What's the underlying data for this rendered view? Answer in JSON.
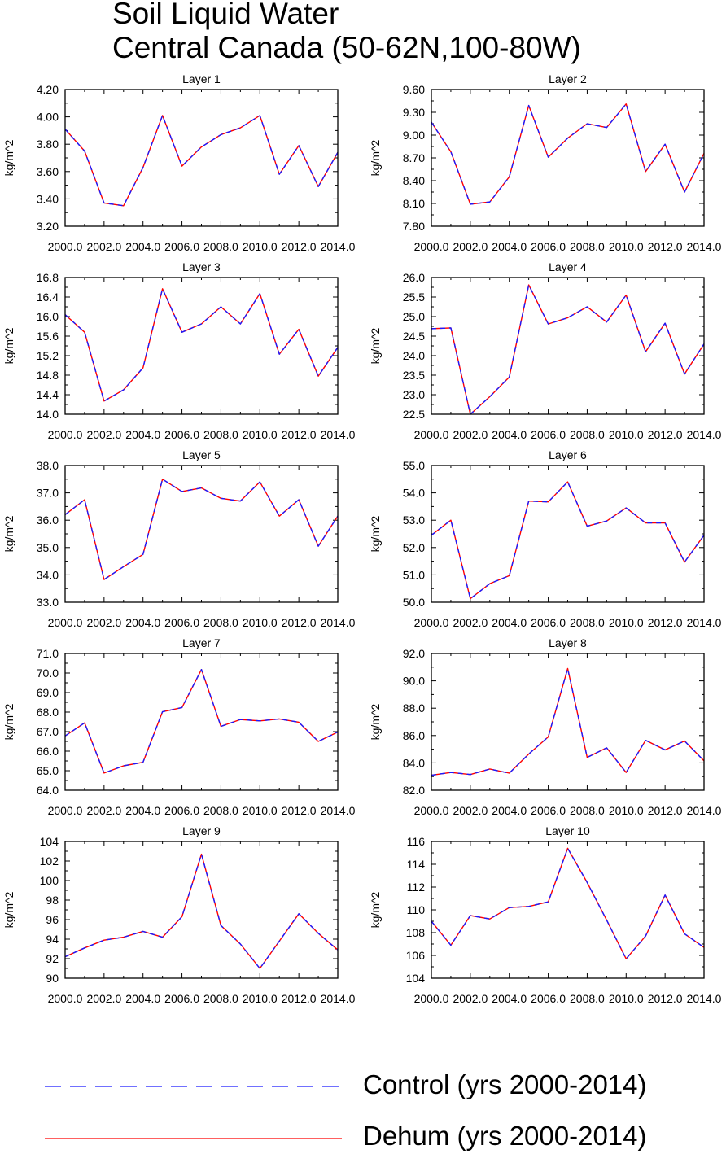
{
  "title": {
    "line1": "Soil Liquid Water",
    "line2": "Central Canada (50-62N,100-80W)"
  },
  "chart_data": [
    {
      "type": "line",
      "title": "Layer 1",
      "xlabel": "",
      "ylabel": "kg/m^2",
      "x": [
        2000,
        2001,
        2002,
        2003,
        2004,
        2005,
        2006,
        2007,
        2008,
        2009,
        2010,
        2011,
        2012,
        2013,
        2014
      ],
      "xlim": [
        2000,
        2014
      ],
      "xticks": [
        2000,
        2002,
        2004,
        2006,
        2008,
        2010,
        2012,
        2014
      ],
      "xtick_labels": [
        "2000.0",
        "2002.0",
        "2004.0",
        "2006.0",
        "2008.0",
        "2010.0",
        "2012.0",
        "2014.0"
      ],
      "ylim": [
        3.2,
        4.2
      ],
      "yticks": [
        3.2,
        3.4,
        3.6,
        3.8,
        4.0,
        4.2
      ],
      "ytick_labels": [
        "3.20",
        "3.40",
        "3.60",
        "3.80",
        "4.00",
        "4.20"
      ],
      "series": [
        {
          "name": "Control (yrs 2000-2014)",
          "values": [
            3.91,
            3.75,
            3.37,
            3.35,
            3.63,
            4.01,
            3.64,
            3.78,
            3.87,
            3.92,
            4.01,
            3.58,
            3.79,
            3.49,
            3.74
          ]
        },
        {
          "name": "Dehum (yrs 2000-2014)",
          "values": [
            3.91,
            3.75,
            3.37,
            3.35,
            3.63,
            4.01,
            3.64,
            3.78,
            3.87,
            3.92,
            4.01,
            3.58,
            3.79,
            3.49,
            3.74
          ]
        }
      ]
    },
    {
      "type": "line",
      "title": "Layer 2",
      "xlabel": "",
      "ylabel": "kg/m^2",
      "x": [
        2000,
        2001,
        2002,
        2003,
        2004,
        2005,
        2006,
        2007,
        2008,
        2009,
        2010,
        2011,
        2012,
        2013,
        2014
      ],
      "xlim": [
        2000,
        2014
      ],
      "xticks": [
        2000,
        2002,
        2004,
        2006,
        2008,
        2010,
        2012,
        2014
      ],
      "xtick_labels": [
        "2000.0",
        "2002.0",
        "2004.0",
        "2006.0",
        "2008.0",
        "2010.0",
        "2012.0",
        "2014.0"
      ],
      "ylim": [
        7.8,
        9.6
      ],
      "yticks": [
        7.8,
        8.1,
        8.4,
        8.7,
        9.0,
        9.3,
        9.6
      ],
      "ytick_labels": [
        "7.80",
        "8.10",
        "8.40",
        "8.70",
        "9.00",
        "9.30",
        "9.60"
      ],
      "series": [
        {
          "name": "Control (yrs 2000-2014)",
          "values": [
            9.17,
            8.78,
            8.09,
            8.12,
            8.45,
            9.39,
            8.71,
            8.96,
            9.15,
            9.1,
            9.41,
            8.52,
            8.88,
            8.25,
            8.76
          ]
        },
        {
          "name": "Dehum (yrs 2000-2014)",
          "values": [
            9.17,
            8.78,
            8.09,
            8.12,
            8.45,
            9.39,
            8.71,
            8.96,
            9.15,
            9.1,
            9.41,
            8.52,
            8.88,
            8.25,
            8.76
          ]
        }
      ]
    },
    {
      "type": "line",
      "title": "Layer 3",
      "xlabel": "",
      "ylabel": "kg/m^2",
      "x": [
        2000,
        2001,
        2002,
        2003,
        2004,
        2005,
        2006,
        2007,
        2008,
        2009,
        2010,
        2011,
        2012,
        2013,
        2014
      ],
      "xlim": [
        2000,
        2014
      ],
      "xticks": [
        2000,
        2002,
        2004,
        2006,
        2008,
        2010,
        2012,
        2014
      ],
      "xtick_labels": [
        "2000.0",
        "2002.0",
        "2004.0",
        "2006.0",
        "2008.0",
        "2010.0",
        "2012.0",
        "2014.0"
      ],
      "ylim": [
        14.0,
        16.8
      ],
      "yticks": [
        14.0,
        14.4,
        14.8,
        15.2,
        15.6,
        16.0,
        16.4,
        16.8
      ],
      "ytick_labels": [
        "14.0",
        "14.4",
        "14.8",
        "15.2",
        "15.6",
        "16.0",
        "16.4",
        "16.8"
      ],
      "series": [
        {
          "name": "Control (yrs 2000-2014)",
          "values": [
            16.04,
            15.68,
            14.27,
            14.5,
            14.95,
            16.57,
            15.68,
            15.85,
            16.2,
            15.85,
            16.47,
            15.23,
            15.74,
            14.78,
            15.37
          ]
        },
        {
          "name": "Dehum (yrs 2000-2014)",
          "values": [
            16.04,
            15.68,
            14.27,
            14.5,
            14.95,
            16.57,
            15.68,
            15.85,
            16.2,
            15.85,
            16.47,
            15.23,
            15.74,
            14.78,
            15.37
          ]
        }
      ]
    },
    {
      "type": "line",
      "title": "Layer 4",
      "xlabel": "",
      "ylabel": "kg/m^2",
      "x": [
        2000,
        2001,
        2002,
        2003,
        2004,
        2005,
        2006,
        2007,
        2008,
        2009,
        2010,
        2011,
        2012,
        2013,
        2014
      ],
      "xlim": [
        2000,
        2014
      ],
      "xticks": [
        2000,
        2002,
        2004,
        2006,
        2008,
        2010,
        2012,
        2014
      ],
      "xtick_labels": [
        "2000.0",
        "2002.0",
        "2004.0",
        "2006.0",
        "2008.0",
        "2010.0",
        "2012.0",
        "2014.0"
      ],
      "ylim": [
        22.5,
        26.0
      ],
      "yticks": [
        22.5,
        23.0,
        23.5,
        24.0,
        24.5,
        25.0,
        25.5,
        26.0
      ],
      "ytick_labels": [
        "22.5",
        "23.0",
        "23.5",
        "24.0",
        "24.5",
        "25.0",
        "25.5",
        "26.0"
      ],
      "series": [
        {
          "name": "Control (yrs 2000-2014)",
          "values": [
            24.69,
            24.71,
            22.5,
            22.95,
            23.45,
            25.81,
            24.81,
            24.97,
            25.25,
            24.86,
            25.55,
            24.1,
            24.83,
            23.53,
            24.3
          ]
        },
        {
          "name": "Dehum (yrs 2000-2014)",
          "values": [
            24.69,
            24.71,
            22.5,
            22.95,
            23.45,
            25.81,
            24.81,
            24.97,
            25.25,
            24.86,
            25.55,
            24.1,
            24.83,
            23.53,
            24.3
          ]
        }
      ]
    },
    {
      "type": "line",
      "title": "Layer 5",
      "xlabel": "",
      "ylabel": "kg/m^2",
      "x": [
        2000,
        2001,
        2002,
        2003,
        2004,
        2005,
        2006,
        2007,
        2008,
        2009,
        2010,
        2011,
        2012,
        2013,
        2014
      ],
      "xlim": [
        2000,
        2014
      ],
      "xticks": [
        2000,
        2002,
        2004,
        2006,
        2008,
        2010,
        2012,
        2014
      ],
      "xtick_labels": [
        "2000.0",
        "2002.0",
        "2004.0",
        "2006.0",
        "2008.0",
        "2010.0",
        "2012.0",
        "2014.0"
      ],
      "ylim": [
        33.0,
        38.0
      ],
      "yticks": [
        33.0,
        34.0,
        35.0,
        36.0,
        37.0,
        38.0
      ],
      "ytick_labels": [
        "33.0",
        "34.0",
        "35.0",
        "36.0",
        "37.0",
        "38.0"
      ],
      "series": [
        {
          "name": "Control (yrs 2000-2014)",
          "values": [
            36.2,
            36.75,
            33.83,
            34.3,
            34.75,
            37.5,
            37.05,
            37.18,
            36.8,
            36.7,
            37.4,
            36.15,
            36.75,
            35.05,
            36.15
          ]
        },
        {
          "name": "Dehum (yrs 2000-2014)",
          "values": [
            36.2,
            36.75,
            33.83,
            34.3,
            34.75,
            37.5,
            37.05,
            37.18,
            36.8,
            36.7,
            37.4,
            36.15,
            36.75,
            35.05,
            36.15
          ]
        }
      ]
    },
    {
      "type": "line",
      "title": "Layer 6",
      "xlabel": "",
      "ylabel": "kg/m^2",
      "x": [
        2000,
        2001,
        2002,
        2003,
        2004,
        2005,
        2006,
        2007,
        2008,
        2009,
        2010,
        2011,
        2012,
        2013,
        2014
      ],
      "xlim": [
        2000,
        2014
      ],
      "xticks": [
        2000,
        2002,
        2004,
        2006,
        2008,
        2010,
        2012,
        2014
      ],
      "xtick_labels": [
        "2000.0",
        "2002.0",
        "2004.0",
        "2006.0",
        "2008.0",
        "2010.0",
        "2012.0",
        "2014.0"
      ],
      "ylim": [
        50.0,
        55.0
      ],
      "yticks": [
        50.0,
        51.0,
        52.0,
        53.0,
        54.0,
        55.0
      ],
      "ytick_labels": [
        "50.0",
        "51.0",
        "52.0",
        "53.0",
        "54.0",
        "55.0"
      ],
      "series": [
        {
          "name": "Control (yrs 2000-2014)",
          "values": [
            52.45,
            53.0,
            50.13,
            50.68,
            50.97,
            53.7,
            53.67,
            54.4,
            52.78,
            52.97,
            53.45,
            52.9,
            52.9,
            51.47,
            52.45
          ]
        },
        {
          "name": "Dehum (yrs 2000-2014)",
          "values": [
            52.45,
            53.0,
            50.13,
            50.68,
            50.97,
            53.7,
            53.67,
            54.4,
            52.78,
            52.97,
            53.45,
            52.9,
            52.9,
            51.47,
            52.45
          ]
        }
      ]
    },
    {
      "type": "line",
      "title": "Layer 7",
      "xlabel": "",
      "ylabel": "kg/m^2",
      "x": [
        2000,
        2001,
        2002,
        2003,
        2004,
        2005,
        2006,
        2007,
        2008,
        2009,
        2010,
        2011,
        2012,
        2013,
        2014
      ],
      "xlim": [
        2000,
        2014
      ],
      "xticks": [
        2000,
        2002,
        2004,
        2006,
        2008,
        2010,
        2012,
        2014
      ],
      "xtick_labels": [
        "2000.0",
        "2002.0",
        "2004.0",
        "2006.0",
        "2008.0",
        "2010.0",
        "2012.0",
        "2014.0"
      ],
      "ylim": [
        64.0,
        71.0
      ],
      "yticks": [
        64.0,
        65.0,
        66.0,
        67.0,
        68.0,
        69.0,
        70.0,
        71.0
      ],
      "ytick_labels": [
        "64.0",
        "65.0",
        "66.0",
        "67.0",
        "68.0",
        "69.0",
        "70.0",
        "71.0"
      ],
      "series": [
        {
          "name": "Control (yrs 2000-2014)",
          "values": [
            66.78,
            67.45,
            64.88,
            65.25,
            65.43,
            68.02,
            68.23,
            70.18,
            67.27,
            67.62,
            67.55,
            67.65,
            67.48,
            66.5,
            66.98
          ]
        },
        {
          "name": "Dehum (yrs 2000-2014)",
          "values": [
            66.78,
            67.45,
            64.88,
            65.25,
            65.43,
            68.02,
            68.23,
            70.18,
            67.27,
            67.62,
            67.55,
            67.65,
            67.48,
            66.5,
            66.98
          ]
        }
      ]
    },
    {
      "type": "line",
      "title": "Layer 8",
      "xlabel": "",
      "ylabel": "kg/m^2",
      "x": [
        2000,
        2001,
        2002,
        2003,
        2004,
        2005,
        2006,
        2007,
        2008,
        2009,
        2010,
        2011,
        2012,
        2013,
        2014
      ],
      "xlim": [
        2000,
        2014
      ],
      "xticks": [
        2000,
        2002,
        2004,
        2006,
        2008,
        2010,
        2012,
        2014
      ],
      "xtick_labels": [
        "2000.0",
        "2002.0",
        "2004.0",
        "2006.0",
        "2008.0",
        "2010.0",
        "2012.0",
        "2014.0"
      ],
      "ylim": [
        82.0,
        92.0
      ],
      "yticks": [
        82.0,
        84.0,
        86.0,
        88.0,
        90.0,
        92.0
      ],
      "ytick_labels": [
        "82.0",
        "84.0",
        "86.0",
        "88.0",
        "90.0",
        "92.0"
      ],
      "series": [
        {
          "name": "Control (yrs 2000-2014)",
          "values": [
            83.1,
            83.3,
            83.15,
            83.55,
            83.25,
            84.65,
            85.9,
            90.9,
            84.4,
            85.1,
            83.3,
            85.65,
            84.95,
            85.6,
            84.15
          ]
        },
        {
          "name": "Dehum (yrs 2000-2014)",
          "values": [
            83.1,
            83.3,
            83.15,
            83.55,
            83.25,
            84.65,
            85.9,
            90.9,
            84.4,
            85.1,
            83.3,
            85.65,
            84.95,
            85.6,
            84.15
          ]
        }
      ]
    },
    {
      "type": "line",
      "title": "Layer 9",
      "xlabel": "",
      "ylabel": "kg/m^2",
      "x": [
        2000,
        2001,
        2002,
        2003,
        2004,
        2005,
        2006,
        2007,
        2008,
        2009,
        2010,
        2011,
        2012,
        2013,
        2014
      ],
      "xlim": [
        2000,
        2014
      ],
      "xticks": [
        2000,
        2002,
        2004,
        2006,
        2008,
        2010,
        2012,
        2014
      ],
      "xtick_labels": [
        "2000.0",
        "2002.0",
        "2004.0",
        "2006.0",
        "2008.0",
        "2010.0",
        "2012.0",
        "2014.0"
      ],
      "ylim": [
        90,
        104
      ],
      "yticks": [
        90,
        92,
        94,
        96,
        98,
        100,
        102,
        104
      ],
      "ytick_labels": [
        "90",
        "92",
        "94",
        "96",
        "98",
        "100",
        "102",
        "104"
      ],
      "series": [
        {
          "name": "Control (yrs 2000-2014)",
          "values": [
            92.2,
            93.1,
            93.9,
            94.2,
            94.8,
            94.2,
            96.3,
            102.7,
            95.4,
            93.5,
            91.0,
            93.8,
            96.6,
            94.6,
            92.9
          ]
        },
        {
          "name": "Dehum (yrs 2000-2014)",
          "values": [
            92.2,
            93.1,
            93.9,
            94.2,
            94.8,
            94.2,
            96.3,
            102.7,
            95.4,
            93.5,
            91.0,
            93.8,
            96.6,
            94.6,
            92.9
          ]
        }
      ]
    },
    {
      "type": "line",
      "title": "Layer 10",
      "xlabel": "",
      "ylabel": "kg/m^2",
      "x": [
        2000,
        2001,
        2002,
        2003,
        2004,
        2005,
        2006,
        2007,
        2008,
        2009,
        2010,
        2011,
        2012,
        2013,
        2014
      ],
      "xlim": [
        2000,
        2014
      ],
      "xticks": [
        2000,
        2002,
        2004,
        2006,
        2008,
        2010,
        2012,
        2014
      ],
      "xtick_labels": [
        "2000.0",
        "2002.0",
        "2004.0",
        "2006.0",
        "2008.0",
        "2010.0",
        "2012.0",
        "2014.0"
      ],
      "ylim": [
        104,
        116
      ],
      "yticks": [
        104,
        106,
        108,
        110,
        112,
        114,
        116
      ],
      "ytick_labels": [
        "104",
        "106",
        "108",
        "110",
        "112",
        "114",
        "116"
      ],
      "series": [
        {
          "name": "Control (yrs 2000-2014)",
          "values": [
            109.0,
            106.9,
            109.5,
            109.2,
            110.2,
            110.3,
            110.7,
            115.4,
            112.4,
            109.1,
            105.7,
            107.7,
            111.3,
            107.9,
            106.7
          ]
        },
        {
          "name": "Dehum (yrs 2000-2014)",
          "values": [
            109.0,
            106.9,
            109.5,
            109.2,
            110.2,
            110.3,
            110.7,
            115.4,
            112.4,
            109.1,
            105.7,
            107.7,
            111.3,
            107.9,
            106.7
          ]
        }
      ]
    }
  ],
  "legend": {
    "items": [
      {
        "label": "Control (yrs 2000-2014)",
        "color": "#1a1aff",
        "style": "dashed"
      },
      {
        "label": "Dehum (yrs 2000-2014)",
        "color": "#ff0000",
        "style": "solid"
      }
    ]
  }
}
